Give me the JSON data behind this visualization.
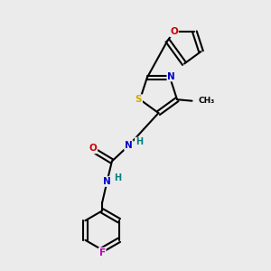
{
  "bg_color": "#ebebeb",
  "atom_colors": {
    "C": "#000000",
    "N": "#0000cc",
    "O": "#cc0000",
    "S": "#ccaa00",
    "F": "#bb00bb",
    "H": "#008080"
  },
  "figsize": [
    3.0,
    3.0
  ],
  "dpi": 100
}
